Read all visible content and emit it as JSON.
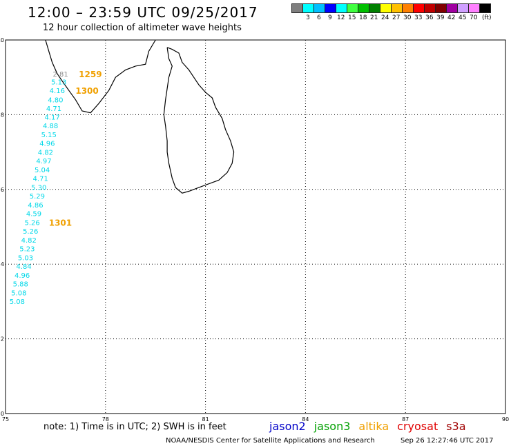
{
  "header": {
    "title": "12:00 – 23:59 UTC 09/25/2017",
    "subtitle": "12 hour collection of altimeter wave heights"
  },
  "legend": {
    "colors": [
      "#7f7f7f",
      "#00ffff",
      "#00bfff",
      "#0000ff",
      "#00ffff",
      "#40ff40",
      "#00c000",
      "#008000",
      "#ffff00",
      "#ffc000",
      "#ff8000",
      "#ff0000",
      "#c00000",
      "#800000",
      "#a000a0",
      "#d0a0ff",
      "#ff80ff",
      "#000000"
    ],
    "labels": [
      "3",
      "6",
      "9",
      "12",
      "15",
      "18",
      "21",
      "24",
      "27",
      "30",
      "33",
      "36",
      "39",
      "42",
      "45",
      "70"
    ],
    "unit": "(ft)"
  },
  "map": {
    "lon_range": [
      75,
      90
    ],
    "lat_range": [
      0,
      10
    ],
    "x_ticks": [
      "75",
      "78",
      "81",
      "84",
      "87",
      "90"
    ],
    "y_ticks": [
      "0",
      "2",
      "4",
      "6",
      "8",
      "10"
    ],
    "grid": "dotted"
  },
  "track": {
    "color": "#00d8e8",
    "points": [
      {
        "lat": 9.1,
        "lon": 76.65,
        "value": "2.81",
        "color": "#888888"
      },
      {
        "lat": 8.88,
        "lon": 76.6,
        "value": "5.13"
      },
      {
        "lat": 8.65,
        "lon": 76.55,
        "value": "4.16"
      },
      {
        "lat": 8.4,
        "lon": 76.5,
        "value": "4.80"
      },
      {
        "lat": 8.17,
        "lon": 76.45,
        "value": "4.71"
      },
      {
        "lat": 7.94,
        "lon": 76.4,
        "value": "4.17"
      },
      {
        "lat": 7.71,
        "lon": 76.35,
        "value": "4.88"
      },
      {
        "lat": 7.47,
        "lon": 76.3,
        "value": "5.15"
      },
      {
        "lat": 7.24,
        "lon": 76.25,
        "value": "4.96"
      },
      {
        "lat": 7.0,
        "lon": 76.2,
        "value": "4.82"
      },
      {
        "lat": 6.77,
        "lon": 76.15,
        "value": "4.97"
      },
      {
        "lat": 6.53,
        "lon": 76.1,
        "value": "5.04"
      },
      {
        "lat": 6.3,
        "lon": 76.05,
        "value": "4.71"
      },
      {
        "lat": 6.06,
        "lon": 76.0,
        "value": "5.30"
      },
      {
        "lat": 5.83,
        "lon": 75.95,
        "value": "5.29"
      },
      {
        "lat": 5.59,
        "lon": 75.9,
        "value": "4.86"
      },
      {
        "lat": 5.36,
        "lon": 75.85,
        "value": "4.59"
      },
      {
        "lat": 5.12,
        "lon": 75.8,
        "value": "5.26"
      },
      {
        "lat": 4.89,
        "lon": 75.75,
        "value": "5.26"
      },
      {
        "lat": 4.65,
        "lon": 75.7,
        "value": "4.82"
      },
      {
        "lat": 4.42,
        "lon": 75.65,
        "value": "5.23"
      },
      {
        "lat": 4.18,
        "lon": 75.6,
        "value": "5.03"
      },
      {
        "lat": 3.95,
        "lon": 75.55,
        "value": "4.84"
      },
      {
        "lat": 3.71,
        "lon": 75.5,
        "value": "4.96"
      },
      {
        "lat": 3.48,
        "lon": 75.45,
        "value": "5.88"
      },
      {
        "lat": 3.24,
        "lon": 75.4,
        "value": "5.08"
      },
      {
        "lat": 3.01,
        "lon": 75.35,
        "value": "5.08"
      }
    ]
  },
  "time_labels": {
    "color": "#f0a000",
    "items": [
      {
        "lat": 9.1,
        "lon": 77.2,
        "text": "1259"
      },
      {
        "lat": 8.65,
        "lon": 77.1,
        "text": "1300"
      },
      {
        "lat": 5.12,
        "lon": 76.3,
        "text": "1301"
      }
    ]
  },
  "coastline": {
    "sri_lanka": [
      [
        79.85,
        9.8
      ],
      [
        80.0,
        9.75
      ],
      [
        80.2,
        9.65
      ],
      [
        80.3,
        9.4
      ],
      [
        80.5,
        9.2
      ],
      [
        80.65,
        9.0
      ],
      [
        80.8,
        8.8
      ],
      [
        81.0,
        8.6
      ],
      [
        81.2,
        8.45
      ],
      [
        81.3,
        8.2
      ],
      [
        81.5,
        7.9
      ],
      [
        81.6,
        7.6
      ],
      [
        81.75,
        7.3
      ],
      [
        81.85,
        7.0
      ],
      [
        81.8,
        6.7
      ],
      [
        81.65,
        6.45
      ],
      [
        81.4,
        6.25
      ],
      [
        81.1,
        6.15
      ],
      [
        80.8,
        6.05
      ],
      [
        80.5,
        5.95
      ],
      [
        80.3,
        5.9
      ],
      [
        80.1,
        6.05
      ],
      [
        80.0,
        6.3
      ],
      [
        79.9,
        6.7
      ],
      [
        79.85,
        7.0
      ],
      [
        79.85,
        7.3
      ],
      [
        79.8,
        7.7
      ],
      [
        79.75,
        8.0
      ],
      [
        79.8,
        8.4
      ],
      [
        79.85,
        8.7
      ],
      [
        79.9,
        9.0
      ],
      [
        80.0,
        9.3
      ],
      [
        79.9,
        9.5
      ],
      [
        79.85,
        9.8
      ]
    ],
    "india": [
      [
        76.2,
        10.0
      ],
      [
        76.3,
        9.7
      ],
      [
        76.4,
        9.4
      ],
      [
        76.55,
        9.1
      ],
      [
        76.7,
        8.9
      ],
      [
        76.9,
        8.65
      ],
      [
        77.1,
        8.4
      ],
      [
        77.3,
        8.1
      ],
      [
        77.55,
        8.05
      ],
      [
        77.8,
        8.3
      ],
      [
        78.1,
        8.65
      ],
      [
        78.3,
        9.0
      ],
      [
        78.6,
        9.2
      ],
      [
        78.9,
        9.3
      ],
      [
        79.2,
        9.35
      ],
      [
        79.3,
        9.7
      ],
      [
        79.5,
        10.0
      ]
    ]
  },
  "notes": {
    "units_note": "note: 1) Time is in UTC; 2) SWH is in feet"
  },
  "missions": [
    {
      "name": "jason2",
      "color": "#0000c8"
    },
    {
      "name": "jason3",
      "color": "#00a000"
    },
    {
      "name": "altika",
      "color": "#f0a000"
    },
    {
      "name": "cryosat",
      "color": "#e00000"
    },
    {
      "name": "s3a",
      "color": "#a00000"
    }
  ],
  "footer": {
    "credit": "NOAA/NESDIS Center for Satellite Applications and Research",
    "timestamp": "Sep 26 12:27:46 UTC 2017"
  }
}
